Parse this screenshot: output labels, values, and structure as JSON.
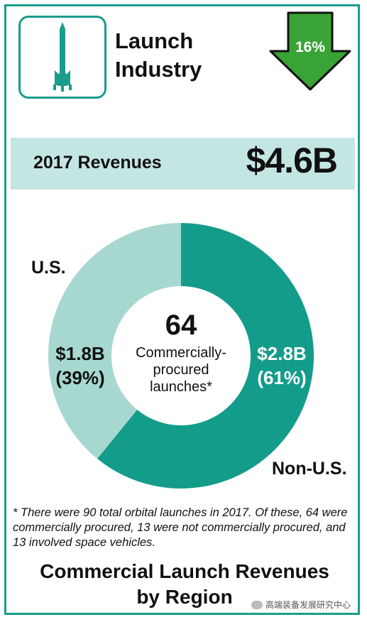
{
  "header": {
    "title_line1": "Launch",
    "title_line2": "Industry",
    "change_badge": "16%",
    "change_direction": "down"
  },
  "revenue": {
    "label": "2017 Revenues",
    "value": "$4.6B"
  },
  "chart_data": {
    "type": "pie",
    "donut": true,
    "title": "Commercial Launch Revenues by Region",
    "center_value": "64",
    "center_text": [
      "Commercially-",
      "procured",
      "launches*"
    ],
    "slices": [
      {
        "name": "Non-U.S.",
        "value": 2.8,
        "value_label": "$2.8B",
        "percent": 61,
        "percent_label": "(61%)",
        "color": "#149c8a"
      },
      {
        "name": "U.S.",
        "value": 1.8,
        "value_label": "$1.8B",
        "percent": 39,
        "percent_label": "(39%)",
        "color": "#a6d8cf"
      }
    ]
  },
  "footnote": "* There were 90 total orbital launches in 2017. Of these, 64 were commercially procured, 13 were not commercially procured, and 13 involved space vehicles.",
  "bottom_title_line1": "Commercial Launch Revenues",
  "bottom_title_line2": "by Region",
  "watermark": "高端装备发展研究中心",
  "colors": {
    "accent": "#1a9c8c",
    "arrow_green": "#3aa335",
    "band": "#c4e6e2"
  },
  "icons": [
    "rocket-icon",
    "down-arrow-icon",
    "wechat-icon"
  ]
}
